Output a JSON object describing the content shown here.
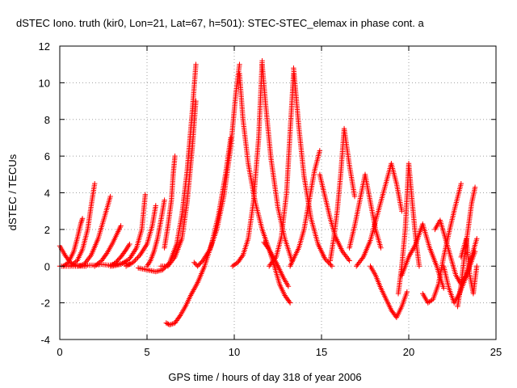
{
  "chart_data": {
    "type": "scatter",
    "title": "dSTEC Iono. truth (kir0, Lon=21, Lat=67, h=501): STEC-STEC_elemax in phase cont. a",
    "xlabel": "GPS time / hours of day 318 of year 2006",
    "ylabel": "dSTEC  / TECUs",
    "xlim": [
      0,
      25
    ],
    "ylim": [
      -4,
      12
    ],
    "x_ticks": [
      "0",
      "5",
      "10",
      "15",
      "20",
      "25"
    ],
    "y_ticks": [
      "-4",
      "-2",
      "0",
      "2",
      "4",
      "6",
      "8",
      "10",
      "12"
    ],
    "grid": true,
    "marker": "plus",
    "color": "#ff0000",
    "series": [
      {
        "x": [
          0.0,
          0.3,
          0.6,
          0.9,
          1.2,
          1.5
        ],
        "y": [
          1.1,
          0.6,
          0.2,
          0.05,
          0.0,
          0.0
        ]
      },
      {
        "x": [
          0.0,
          0.4,
          0.8,
          1.2,
          1.6,
          2.0,
          2.4,
          2.8,
          3.2,
          3.6,
          4.0
        ],
        "y": [
          0.0,
          0.0,
          0.0,
          0.0,
          0.05,
          0.05,
          0.1,
          0.05,
          0.1,
          0.15,
          0.1
        ]
      },
      {
        "x": [
          0.2,
          0.5,
          0.8,
          1.0,
          1.2,
          1.3
        ],
        "y": [
          0.0,
          0.2,
          0.8,
          1.5,
          2.3,
          2.6
        ]
      },
      {
        "x": [
          0.6,
          1.0,
          1.3,
          1.6,
          1.8,
          2.0
        ],
        "y": [
          0.0,
          0.3,
          0.9,
          2.0,
          3.3,
          4.5
        ]
      },
      {
        "x": [
          1.0,
          1.4,
          1.8,
          2.2,
          2.6,
          2.9
        ],
        "y": [
          0.0,
          0.1,
          0.6,
          1.5,
          2.8,
          3.8
        ]
      },
      {
        "x": [
          2.0,
          2.4,
          2.7,
          3.0,
          3.3,
          3.5
        ],
        "y": [
          0.0,
          0.3,
          0.7,
          1.2,
          1.8,
          2.2
        ]
      },
      {
        "x": [
          2.9,
          3.2,
          3.5,
          3.8,
          4.0
        ],
        "y": [
          0.0,
          0.2,
          0.5,
          0.9,
          1.2
        ]
      },
      {
        "x": [
          3.0,
          3.5,
          4.0,
          4.4,
          4.7,
          4.9
        ],
        "y": [
          0.0,
          0.1,
          0.4,
          1.0,
          2.0,
          3.9
        ]
      },
      {
        "x": [
          3.8,
          4.2,
          4.6,
          5.0,
          5.3,
          5.5
        ],
        "y": [
          0.0,
          0.2,
          0.6,
          1.2,
          2.2,
          3.3
        ]
      },
      {
        "x": [
          5.0,
          5.2,
          5.4,
          5.6,
          5.8,
          6.0
        ],
        "y": [
          0.0,
          0.3,
          0.8,
          1.5,
          2.5,
          3.6
        ]
      },
      {
        "x": [
          6.0,
          6.2,
          6.4,
          6.5,
          6.6
        ],
        "y": [
          1.0,
          2.2,
          3.6,
          5.0,
          6.0
        ]
      },
      {
        "x": [
          4.5,
          5.0,
          5.5,
          5.9,
          6.3,
          6.7,
          7.0,
          7.3,
          7.6,
          7.8
        ],
        "y": [
          -0.1,
          -0.2,
          -0.3,
          -0.2,
          0.2,
          1.2,
          2.8,
          5.2,
          8.5,
          11.0
        ]
      },
      {
        "x": [
          5.8,
          6.2,
          6.6,
          7.0,
          7.3,
          7.6,
          7.8
        ],
        "y": [
          0.0,
          0.0,
          0.5,
          1.5,
          3.5,
          6.5,
          9.0
        ]
      },
      {
        "x": [
          6.1,
          6.3,
          6.6,
          6.9,
          7.2,
          7.5,
          7.9,
          8.3,
          8.7,
          9.1,
          9.5,
          9.8
        ],
        "y": [
          -3.1,
          -3.2,
          -3.1,
          -2.7,
          -2.2,
          -1.6,
          -0.9,
          0.0,
          1.2,
          2.8,
          5.0,
          7.0
        ]
      },
      {
        "x": [
          7.7,
          7.9,
          8.2,
          8.6,
          9.0,
          9.4,
          9.8,
          10.1,
          10.3
        ],
        "y": [
          0.2,
          0.0,
          0.3,
          0.9,
          2.0,
          3.8,
          6.5,
          9.5,
          11.0
        ]
      },
      {
        "x": [
          10.3,
          10.5,
          10.8,
          11.2,
          11.6,
          12.0,
          12.4,
          12.8,
          13.1
        ],
        "y": [
          10.5,
          8.0,
          5.6,
          3.5,
          2.0,
          0.9,
          0.2,
          -0.6,
          -1.1
        ]
      },
      {
        "x": [
          9.9,
          10.2,
          10.5,
          10.8,
          11.1,
          11.4,
          11.6
        ],
        "y": [
          0.0,
          0.2,
          0.6,
          1.5,
          3.5,
          7.0,
          11.2
        ]
      },
      {
        "x": [
          11.6,
          11.8,
          12.1,
          12.5,
          12.9,
          13.3
        ],
        "y": [
          11.0,
          8.8,
          5.9,
          3.2,
          1.5,
          0.3
        ]
      },
      {
        "x": [
          11.7,
          12.0,
          12.3,
          12.6,
          12.9,
          13.2
        ],
        "y": [
          1.3,
          0.9,
          0.0,
          -1.0,
          -1.6,
          -2.0
        ]
      },
      {
        "x": [
          12.0,
          12.4,
          12.7,
          13.0,
          13.2,
          13.4
        ],
        "y": [
          0.0,
          0.5,
          1.6,
          4.0,
          7.3,
          10.5
        ]
      },
      {
        "x": [
          13.4,
          13.7,
          14.0,
          14.4,
          14.8,
          15.2,
          15.6
        ],
        "y": [
          10.8,
          7.6,
          4.9,
          2.6,
          1.2,
          0.4,
          0.0
        ]
      },
      {
        "x": [
          13.2,
          13.4,
          13.7,
          14.0,
          14.3,
          14.6,
          14.9
        ],
        "y": [
          0.0,
          0.4,
          1.0,
          2.0,
          3.6,
          5.2,
          6.3
        ]
      },
      {
        "x": [
          14.9,
          15.2,
          15.5,
          15.8,
          16.2,
          16.6
        ],
        "y": [
          5.0,
          3.8,
          2.6,
          1.6,
          0.8,
          0.3
        ]
      },
      {
        "x": [
          15.5,
          15.7,
          15.9,
          16.1,
          16.3,
          16.6,
          16.9
        ],
        "y": [
          0.3,
          1.5,
          3.0,
          5.0,
          7.5,
          5.5,
          3.8
        ]
      },
      {
        "x": [
          16.6,
          16.9,
          17.2,
          17.5,
          17.8,
          18.1,
          18.4
        ],
        "y": [
          1.0,
          2.2,
          3.6,
          5.0,
          3.5,
          2.0,
          1.0
        ]
      },
      {
        "x": [
          17.0,
          17.4,
          17.8,
          18.2,
          18.6,
          19.0,
          19.3,
          19.6
        ],
        "y": [
          0.0,
          0.5,
          1.4,
          2.8,
          4.2,
          5.6,
          4.5,
          3.0
        ]
      },
      {
        "x": [
          17.8,
          18.1,
          18.4,
          18.7,
          19.0,
          19.3,
          19.6,
          19.9
        ],
        "y": [
          0.0,
          -0.5,
          -1.2,
          -1.8,
          -2.4,
          -2.8,
          -2.2,
          -1.4
        ]
      },
      {
        "x": [
          19.4,
          19.6,
          19.8,
          20.0,
          20.2,
          20.4,
          20.6
        ],
        "y": [
          -1.5,
          0.0,
          2.0,
          5.6,
          3.5,
          1.5,
          0.0
        ]
      },
      {
        "x": [
          19.6,
          20.0,
          20.4,
          20.8,
          21.2,
          21.6,
          22.0
        ],
        "y": [
          -0.5,
          0.5,
          1.2,
          2.3,
          1.0,
          0.0,
          -1.2
        ]
      },
      {
        "x": [
          20.8,
          21.1,
          21.4,
          21.7,
          22.0,
          22.3,
          22.6,
          23.0
        ],
        "y": [
          -1.5,
          -2.0,
          -1.8,
          -1.0,
          0.5,
          1.8,
          3.0,
          4.5
        ]
      },
      {
        "x": [
          21.5,
          21.8,
          22.1,
          22.4,
          22.7,
          23.0,
          23.3,
          23.6,
          23.9
        ],
        "y": [
          2.0,
          2.5,
          1.5,
          0.5,
          -0.5,
          -1.0,
          -0.5,
          0.5,
          1.5
        ]
      },
      {
        "x": [
          22.0,
          22.3,
          22.6,
          22.9,
          23.2,
          23.5,
          23.8
        ],
        "y": [
          0.0,
          -1.2,
          -2.0,
          -1.5,
          -0.8,
          0.0,
          0.8
        ]
      },
      {
        "x": [
          22.8,
          23.0,
          23.2,
          23.4,
          23.6,
          23.8
        ],
        "y": [
          -2.2,
          -1.0,
          0.6,
          2.0,
          3.4,
          4.3
        ]
      },
      {
        "x": [
          23.0,
          23.3,
          23.5,
          23.7,
          23.9
        ],
        "y": [
          0.5,
          1.5,
          -0.5,
          -1.5,
          0.0
        ]
      }
    ]
  }
}
